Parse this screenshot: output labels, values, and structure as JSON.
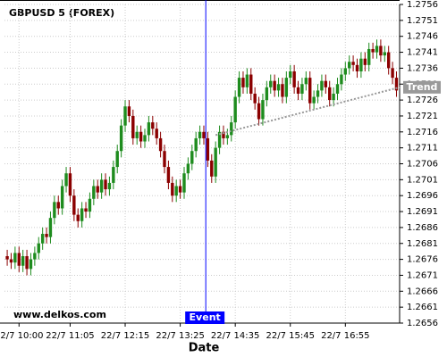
{
  "chart_data": {
    "type": "candlestick",
    "title": "GBPUSD 5 (FOREX)",
    "watermark": "www.delkos.com",
    "x_label": "Date",
    "up_color": "#1e8c1e",
    "down_color": "#8b0000",
    "grid": true,
    "ylim": [
      1.2656,
      1.2756
    ],
    "yticks": [
      1.2656,
      1.2661,
      1.2666,
      1.2671,
      1.2676,
      1.2681,
      1.2686,
      1.2691,
      1.2696,
      1.2701,
      1.2706,
      1.2711,
      1.2716,
      1.2721,
      1.2726,
      1.2731,
      1.2736,
      1.2741,
      1.2746,
      1.2751,
      1.2756
    ],
    "xlim": [
      -0.7,
      99.8
    ],
    "xticks": [
      {
        "value": 3,
        "label": "22/7 10:00"
      },
      {
        "value": 16,
        "label": "22/7 11:05"
      },
      {
        "value": 30,
        "label": "22/7 12:15"
      },
      {
        "value": 44,
        "label": "22/7 13:25"
      },
      {
        "value": 58,
        "label": "22/7 14:35"
      },
      {
        "value": 72,
        "label": "22/7 15:45"
      },
      {
        "value": 86,
        "label": "22/7 16:55"
      }
    ],
    "open": [
      1.2677,
      1.2676,
      1.2675,
      1.2678,
      1.2674,
      1.2677,
      1.2673,
      1.2676,
      1.2678,
      1.2681,
      1.2684,
      1.2683,
      1.2689,
      1.2694,
      1.2692,
      1.2699,
      1.2703,
      1.2696,
      1.269,
      1.2688,
      1.2692,
      1.2691,
      1.2695,
      1.2699,
      1.2697,
      1.2701,
      1.2698,
      1.27,
      1.2705,
      1.271,
      1.2718,
      1.2724,
      1.2721,
      1.2714,
      1.2716,
      1.2713,
      1.2715,
      1.2719,
      1.2717,
      1.2714,
      1.271,
      1.2705,
      1.27,
      1.2696,
      1.2699,
      1.2697,
      1.2703,
      1.2706,
      1.271,
      1.2714,
      1.2716,
      1.2714,
      1.2707,
      1.2702,
      1.2711,
      1.2716,
      1.2714,
      1.2715,
      1.2719,
      1.2727,
      1.2733,
      1.273,
      1.2734,
      1.2728,
      1.2725,
      1.272,
      1.2726,
      1.273,
      1.2732,
      1.2729,
      1.2731,
      1.2727,
      1.2733,
      1.2735,
      1.273,
      1.2728,
      1.2731,
      1.2733,
      1.2725,
      1.2727,
      1.2729,
      1.2732,
      1.273,
      1.2726,
      1.2728,
      1.2731,
      1.2734,
      1.2736,
      1.2738,
      1.2737,
      1.2735,
      1.2739,
      1.2737,
      1.2742,
      1.2741,
      1.2743,
      1.274,
      1.2741,
      1.2736,
      1.2733
    ],
    "high": [
      1.2679,
      1.2678,
      1.268,
      1.268,
      1.2679,
      1.2679,
      1.2678,
      1.268,
      1.2683,
      1.2686,
      1.2686,
      1.2691,
      1.2696,
      1.2696,
      1.2701,
      1.2705,
      1.2705,
      1.2698,
      1.2692,
      1.2694,
      1.2694,
      1.2697,
      1.2701,
      1.2701,
      1.2703,
      1.2703,
      1.2702,
      1.2707,
      1.2712,
      1.272,
      1.2726,
      1.2726,
      1.2723,
      1.2718,
      1.2718,
      1.2717,
      1.2721,
      1.2721,
      1.2719,
      1.2716,
      1.2712,
      1.2707,
      1.2702,
      1.2701,
      1.2701,
      1.2705,
      1.2708,
      1.2712,
      1.2716,
      1.2718,
      1.2718,
      1.2716,
      1.2709,
      1.2713,
      1.2718,
      1.2718,
      1.2717,
      1.2721,
      1.2729,
      1.2735,
      1.2735,
      1.2736,
      1.2736,
      1.273,
      1.2727,
      1.2728,
      1.2732,
      1.2734,
      1.2734,
      1.2733,
      1.2733,
      1.2735,
      1.2737,
      1.2737,
      1.2732,
      1.2733,
      1.2735,
      1.2735,
      1.2729,
      1.2731,
      1.2734,
      1.2734,
      1.2732,
      1.273,
      1.2733,
      1.2736,
      1.2738,
      1.274,
      1.274,
      1.2739,
      1.2741,
      1.2741,
      1.2744,
      1.2744,
      1.2745,
      1.2745,
      1.2743,
      1.2743,
      1.2738,
      1.2735
    ],
    "low": [
      1.2674,
      1.2673,
      1.2673,
      1.2672,
      1.2672,
      1.2671,
      1.2671,
      1.2674,
      1.2676,
      1.2679,
      1.2681,
      1.2681,
      1.2687,
      1.269,
      1.269,
      1.2697,
      1.2694,
      1.2688,
      1.2686,
      1.2686,
      1.2689,
      1.2689,
      1.2693,
      1.2695,
      1.2695,
      1.2696,
      1.2696,
      1.2698,
      1.2703,
      1.2708,
      1.2716,
      1.2719,
      1.2712,
      1.2712,
      1.2711,
      1.2711,
      1.2713,
      1.2715,
      1.2712,
      1.2708,
      1.2703,
      1.2698,
      1.2694,
      1.2694,
      1.2695,
      1.2695,
      1.2701,
      1.2704,
      1.2708,
      1.2712,
      1.2712,
      1.2705,
      1.27,
      1.27,
      1.2709,
      1.2712,
      1.2712,
      1.2713,
      1.2717,
      1.2725,
      1.2728,
      1.2728,
      1.2726,
      1.2723,
      1.2718,
      1.2718,
      1.2724,
      1.2728,
      1.2727,
      1.2727,
      1.2725,
      1.2725,
      1.2731,
      1.2728,
      1.2726,
      1.2726,
      1.2729,
      1.2723,
      1.2723,
      1.2725,
      1.2727,
      1.2728,
      1.2724,
      1.2724,
      1.2726,
      1.2729,
      1.2732,
      1.2734,
      1.2735,
      1.2733,
      1.2733,
      1.2735,
      1.2735,
      1.2739,
      1.2739,
      1.2738,
      1.2738,
      1.2734,
      1.2731,
      1.2727
    ],
    "close": [
      1.2676,
      1.2675,
      1.2678,
      1.2674,
      1.2677,
      1.2673,
      1.2676,
      1.2678,
      1.2681,
      1.2684,
      1.2683,
      1.2689,
      1.2694,
      1.2692,
      1.2699,
      1.2703,
      1.2696,
      1.269,
      1.2688,
      1.2692,
      1.2691,
      1.2695,
      1.2699,
      1.2697,
      1.2701,
      1.2698,
      1.27,
      1.2705,
      1.271,
      1.2718,
      1.2724,
      1.2721,
      1.2714,
      1.2716,
      1.2713,
      1.2715,
      1.2719,
      1.2717,
      1.2714,
      1.271,
      1.2705,
      1.27,
      1.2696,
      1.2699,
      1.2697,
      1.2703,
      1.2706,
      1.271,
      1.2714,
      1.2716,
      1.2714,
      1.2707,
      1.2702,
      1.2711,
      1.2716,
      1.2714,
      1.2715,
      1.2719,
      1.2727,
      1.2733,
      1.273,
      1.2734,
      1.2728,
      1.2725,
      1.272,
      1.2726,
      1.273,
      1.2732,
      1.2729,
      1.2731,
      1.2727,
      1.2733,
      1.2735,
      1.273,
      1.2728,
      1.2731,
      1.2733,
      1.2725,
      1.2727,
      1.2729,
      1.2732,
      1.273,
      1.2726,
      1.2728,
      1.2731,
      1.2734,
      1.2736,
      1.2738,
      1.2737,
      1.2735,
      1.2739,
      1.2737,
      1.2742,
      1.2741,
      1.2743,
      1.274,
      1.2741,
      1.2736,
      1.2733,
      1.2729
    ],
    "event": {
      "label": "Event",
      "x": 50.5,
      "color": "#0000ff"
    },
    "trend": {
      "label": "Trend",
      "x": [
        53,
        99.8
      ],
      "values": [
        1.2715,
        1.273
      ],
      "color": "#999999"
    }
  }
}
